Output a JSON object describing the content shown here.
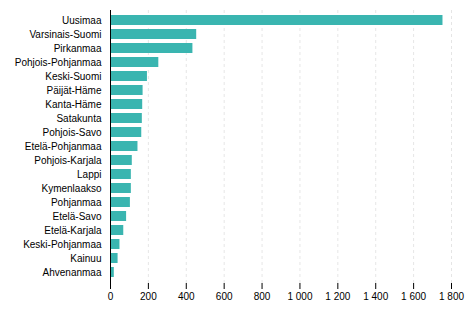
{
  "chart_data": {
    "type": "bar",
    "orientation": "horizontal",
    "categories": [
      "Ahvenanmaa",
      "Kainuu",
      "Keski-Pohjanmaa",
      "Etelä-Karjala",
      "Etelä-Savo",
      "Pohjanmaa",
      "Kymenlaakso",
      "Lappi",
      "Pohjois-Karjala",
      "Etelä-Pohjanmaa",
      "Pohjois-Savo",
      "Satakunta",
      "Kanta-Häme",
      "Päijät-Häme",
      "Keski-Suomi",
      "Pohjois-Pohjanmaa",
      "Pirkanmaa",
      "Varsinais-Suomi",
      "Uusimaa"
    ],
    "values": [
      20,
      40,
      50,
      70,
      85,
      105,
      110,
      110,
      115,
      145,
      165,
      168,
      170,
      172,
      195,
      255,
      435,
      455,
      1755
    ],
    "color": "#3ab5b0",
    "xlim": [
      0,
      1800
    ],
    "xticks": [
      0,
      200,
      400,
      600,
      800,
      {
        "value": 1000,
        "label": "1 000"
      },
      {
        "value": 1200,
        "label": "1 200"
      },
      {
        "value": 1400,
        "label": "1 400"
      },
      {
        "value": 1600,
        "label": "1 600"
      },
      {
        "value": 1800,
        "label": "1 800"
      }
    ],
    "grid": true
  }
}
